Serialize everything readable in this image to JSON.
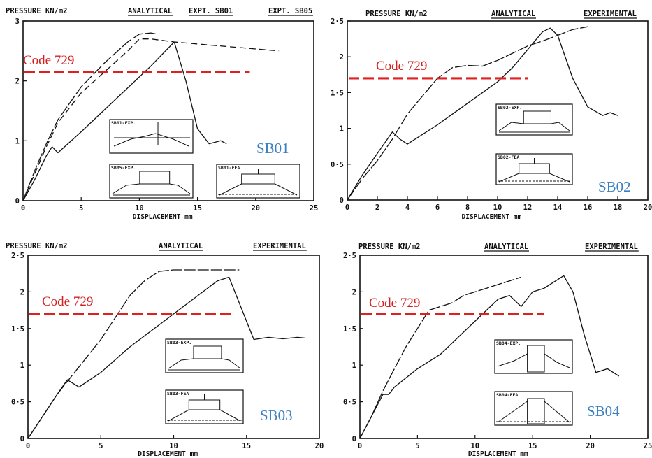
{
  "colors": {
    "code_line": "#e02020",
    "code_text": "#d42020",
    "panel_label": "#3a7fc0",
    "ink": "#111111"
  },
  "chart_data": [
    {
      "type": "line",
      "panel_label": "SB01",
      "header": {
        "ylabel": "PRESSURE KN/m2",
        "legend": [
          "ANALYTICAL",
          "EXPT. SB01",
          "EXPT. SB05"
        ]
      },
      "xlabel": "DISPLACEMENT mm",
      "xlim": [
        0,
        25
      ],
      "ylim": [
        0,
        3
      ],
      "xticks": [
        0,
        5,
        10,
        15,
        20,
        25
      ],
      "yticks": [
        0,
        1,
        2,
        3
      ],
      "ytick_labels": [
        "0",
        "1",
        "2",
        "3"
      ],
      "code_label": "Code 729",
      "code_line": {
        "value": 2.15,
        "x_range": [
          0,
          19.5
        ]
      },
      "series": [
        {
          "name": "ANALYTICAL",
          "style": "solid",
          "x": [
            0,
            1,
            2,
            2.5,
            3,
            5,
            8,
            11,
            13,
            14,
            15,
            16,
            17,
            17.5
          ],
          "y": [
            0,
            0.35,
            0.75,
            0.9,
            0.8,
            1.15,
            1.7,
            2.25,
            2.65,
            2.0,
            1.2,
            0.95,
            1.0,
            0.95
          ]
        },
        {
          "name": "EXPT. SB01",
          "style": "dashed-long",
          "x": [
            0,
            1,
            2,
            3,
            5,
            7,
            9,
            10,
            11,
            11.5
          ],
          "y": [
            0,
            0.5,
            0.95,
            1.35,
            1.9,
            2.3,
            2.65,
            2.78,
            2.8,
            2.78
          ]
        },
        {
          "name": "EXPT. SB05",
          "style": "dashed",
          "x": [
            0,
            1,
            2,
            3,
            5,
            7,
            9,
            10,
            11,
            13,
            16,
            22
          ],
          "y": [
            0,
            0.45,
            0.9,
            1.3,
            1.8,
            2.15,
            2.5,
            2.7,
            2.7,
            2.65,
            2.6,
            2.5
          ]
        }
      ],
      "insets": [
        "SB01-EXP.",
        "SB05-EXP.",
        "SB01-FEA"
      ]
    },
    {
      "type": "line",
      "panel_label": "SB02",
      "header": {
        "ylabel": "PRESSURE KN/m2",
        "legend": [
          "ANALYTICAL",
          "EXPERIMENTAL"
        ]
      },
      "xlabel": "DISPLACEMENT mm",
      "xlim": [
        0,
        20
      ],
      "ylim": [
        0,
        2.5
      ],
      "xticks": [
        0,
        2,
        4,
        6,
        8,
        10,
        12,
        14,
        16,
        18,
        20
      ],
      "yticks": [
        0,
        0.5,
        1,
        1.5,
        2,
        2.5
      ],
      "ytick_labels": [
        "0",
        "0·5",
        "1",
        "1·5",
        "2",
        "2·5"
      ],
      "code_label": "Code 729",
      "code_line": {
        "value": 1.7,
        "x_range": [
          0,
          12
        ]
      },
      "series": [
        {
          "name": "ANALYTICAL",
          "style": "dashed-long",
          "x": [
            0,
            1,
            2,
            3,
            4,
            5,
            6,
            7,
            8,
            9,
            10,
            11,
            12,
            13,
            14,
            15,
            16
          ],
          "y": [
            0,
            0.3,
            0.55,
            0.85,
            1.2,
            1.45,
            1.7,
            1.85,
            1.88,
            1.87,
            1.95,
            2.05,
            2.15,
            2.22,
            2.3,
            2.38,
            2.42
          ]
        },
        {
          "name": "EXPERIMENTAL",
          "style": "solid",
          "x": [
            0,
            1,
            2,
            3,
            3.5,
            4,
            6,
            8,
            10,
            11,
            12,
            13,
            13.5,
            14,
            15,
            16,
            17,
            17.5,
            18
          ],
          "y": [
            0,
            0.35,
            0.65,
            0.95,
            0.85,
            0.78,
            1.05,
            1.35,
            1.65,
            1.85,
            2.1,
            2.35,
            2.4,
            2.3,
            1.7,
            1.3,
            1.18,
            1.22,
            1.18
          ]
        }
      ],
      "insets": [
        "SB02-EXP.",
        "SB02-FEA"
      ]
    },
    {
      "type": "line",
      "panel_label": "SB03",
      "header": {
        "ylabel": "PRESSURE KN/m2",
        "legend": [
          "ANALYTICAL",
          "EXPERIMENTAL"
        ]
      },
      "xlabel": "DISPLACEMENT mm",
      "xlim": [
        0,
        20
      ],
      "ylim": [
        0,
        2.5
      ],
      "xticks": [
        0,
        5,
        10,
        15,
        20
      ],
      "yticks": [
        0,
        0.5,
        1,
        1.5,
        2,
        2.5
      ],
      "ytick_labels": [
        "0",
        "0·5",
        "1",
        "1·5",
        "2",
        "2·5"
      ],
      "code_label": "Code 729",
      "code_line": {
        "value": 1.7,
        "x_range": [
          0,
          14
        ]
      },
      "series": [
        {
          "name": "ANALYTICAL",
          "style": "dashed-long",
          "x": [
            0,
            1,
            2,
            3,
            4,
            5,
            6,
            7,
            8,
            9,
            10,
            12,
            14.5
          ],
          "y": [
            0,
            0.3,
            0.6,
            0.85,
            1.1,
            1.35,
            1.65,
            1.95,
            2.15,
            2.28,
            2.3,
            2.3,
            2.3
          ]
        },
        {
          "name": "EXPERIMENTAL",
          "style": "solid",
          "x": [
            0,
            1,
            2,
            2.7,
            3.5,
            5,
            7,
            9,
            11,
            12,
            13,
            13.8,
            14.5,
            15.5,
            16.5,
            17.5,
            18.5,
            19
          ],
          "y": [
            0,
            0.3,
            0.6,
            0.8,
            0.7,
            0.9,
            1.25,
            1.55,
            1.85,
            2.0,
            2.15,
            2.2,
            1.85,
            1.35,
            1.38,
            1.36,
            1.38,
            1.37
          ]
        }
      ],
      "insets": [
        "SB03-EXP.",
        "SB03-FEA"
      ]
    },
    {
      "type": "line",
      "panel_label": "SB04",
      "header": {
        "ylabel": "PRESSURE KN/m2",
        "legend": [
          "ANALYTICAL",
          "EXPERIMENTAL"
        ]
      },
      "xlabel": "DISPLACEMENT mm",
      "xlim": [
        0,
        25
      ],
      "ylim": [
        0,
        2.5
      ],
      "xticks": [
        0,
        5,
        10,
        15,
        20,
        25
      ],
      "yticks": [
        0,
        0.5,
        1,
        1.5,
        2,
        2.5
      ],
      "ytick_labels": [
        "0",
        "0·5",
        "1",
        "1·5",
        "2",
        "2·5"
      ],
      "code_label": "Code 729",
      "code_line": {
        "value": 1.7,
        "x_range": [
          0,
          16
        ]
      },
      "series": [
        {
          "name": "ANALYTICAL",
          "style": "dashed-long",
          "x": [
            0,
            1,
            2,
            3,
            4,
            5,
            6,
            7,
            8,
            9,
            10,
            11,
            12,
            13,
            14
          ],
          "y": [
            0,
            0.3,
            0.65,
            0.95,
            1.25,
            1.5,
            1.75,
            1.8,
            1.85,
            1.95,
            2.0,
            2.05,
            2.1,
            2.15,
            2.2
          ]
        },
        {
          "name": "EXPERIMENTAL",
          "style": "solid",
          "x": [
            0,
            1,
            2,
            2.5,
            3,
            5,
            7,
            9,
            11,
            12,
            13,
            14,
            15,
            16,
            17,
            17.7,
            18.5,
            19.5,
            20.5,
            21.5,
            22.5
          ],
          "y": [
            0,
            0.3,
            0.6,
            0.6,
            0.7,
            0.95,
            1.15,
            1.45,
            1.75,
            1.9,
            1.95,
            1.8,
            2.0,
            2.05,
            2.15,
            2.22,
            2.0,
            1.4,
            0.9,
            0.95,
            0.85
          ]
        }
      ],
      "insets": [
        "SB04-EXP.",
        "SB04-FEA"
      ]
    }
  ]
}
